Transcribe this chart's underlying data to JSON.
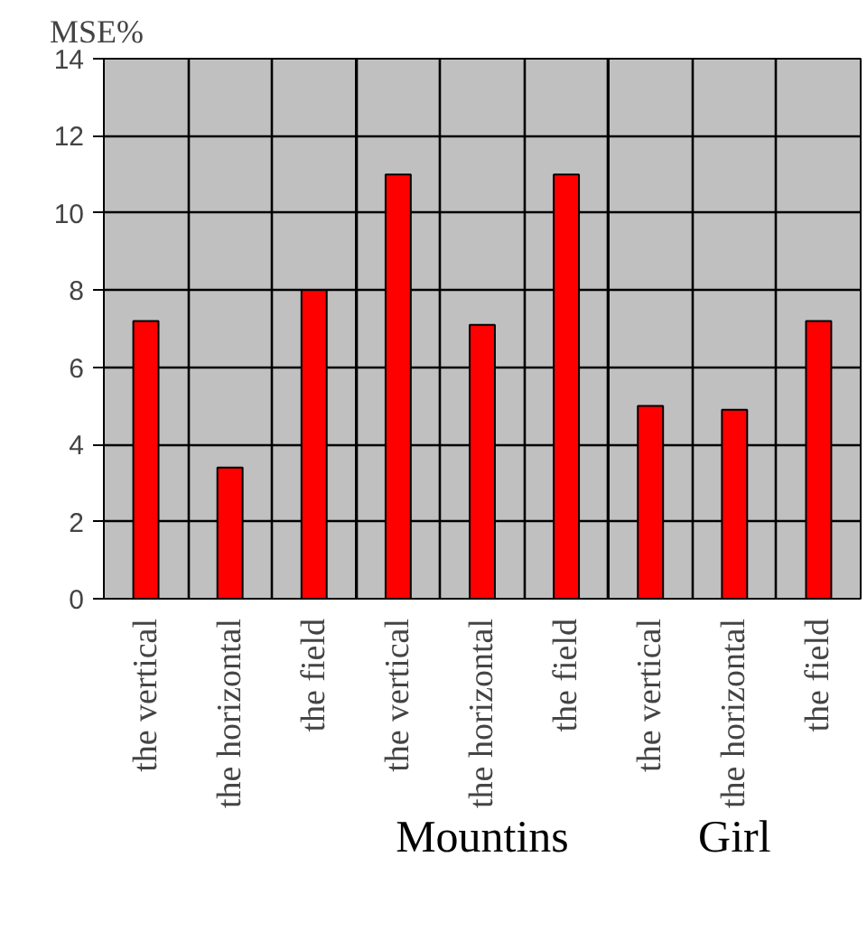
{
  "chart_data": {
    "type": "bar",
    "ylabel": "MSE%",
    "categories": [
      "the vertical",
      "the horizontal",
      "the field",
      "the vertical",
      "the horizontal",
      "the field",
      "the vertical",
      "the horizontal",
      "the field"
    ],
    "values": [
      7.2,
      3.4,
      8.0,
      11.0,
      7.1,
      11.0,
      5.0,
      4.9,
      7.2
    ],
    "color": "#ff0000",
    "ylim": [
      0,
      14
    ],
    "yticks": [
      0,
      2,
      4,
      6,
      8,
      10,
      12,
      14
    ],
    "grid": true,
    "annotations": [
      "Mountins",
      "Girl"
    ]
  }
}
